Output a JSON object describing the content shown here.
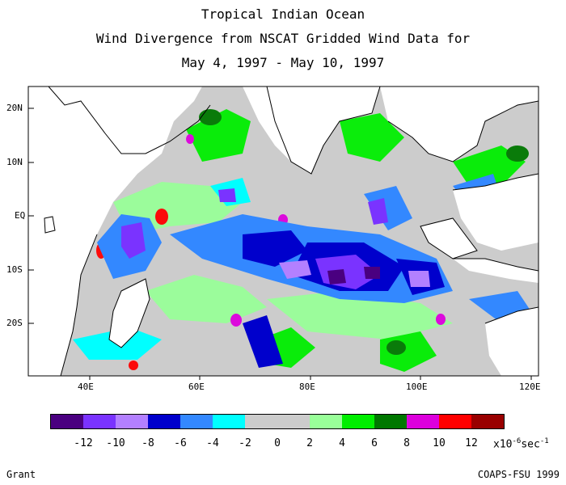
{
  "titles": [
    "Tropical Indian Ocean",
    "Wind Divergence from NSCAT Gridded Wind Data for",
    "May 4, 1997 - May 10, 1997"
  ],
  "map": {
    "lon_labels": [
      "40E",
      "60E",
      "80E",
      "100E",
      "120E"
    ],
    "lat_labels": [
      "20N",
      "10N",
      "EQ",
      "10S",
      "20S"
    ],
    "land_color": "#ffffff",
    "no_data_color": "#ffffff"
  },
  "colorbar": {
    "colors": [
      "#4a0080",
      "#7a33ff",
      "#b380ff",
      "#0000cc",
      "#3388ff",
      "#00ffff",
      "#cccccc",
      "#cccccc",
      "#99ff99",
      "#00ee00",
      "#007700",
      "#dd00dd",
      "#ff0000",
      "#990000"
    ],
    "tick_labels": [
      "-12",
      "-10",
      "-8",
      "-6",
      "-4",
      "-2",
      "0",
      "2",
      "4",
      "6",
      "8",
      "10",
      "12"
    ],
    "unit_prefix": "x10",
    "unit_exp": "-6",
    "unit_suffix": "sec",
    "unit_exp2": "-1"
  },
  "footer": {
    "left": "Grant",
    "right": "COAPS-FSU 1999"
  }
}
